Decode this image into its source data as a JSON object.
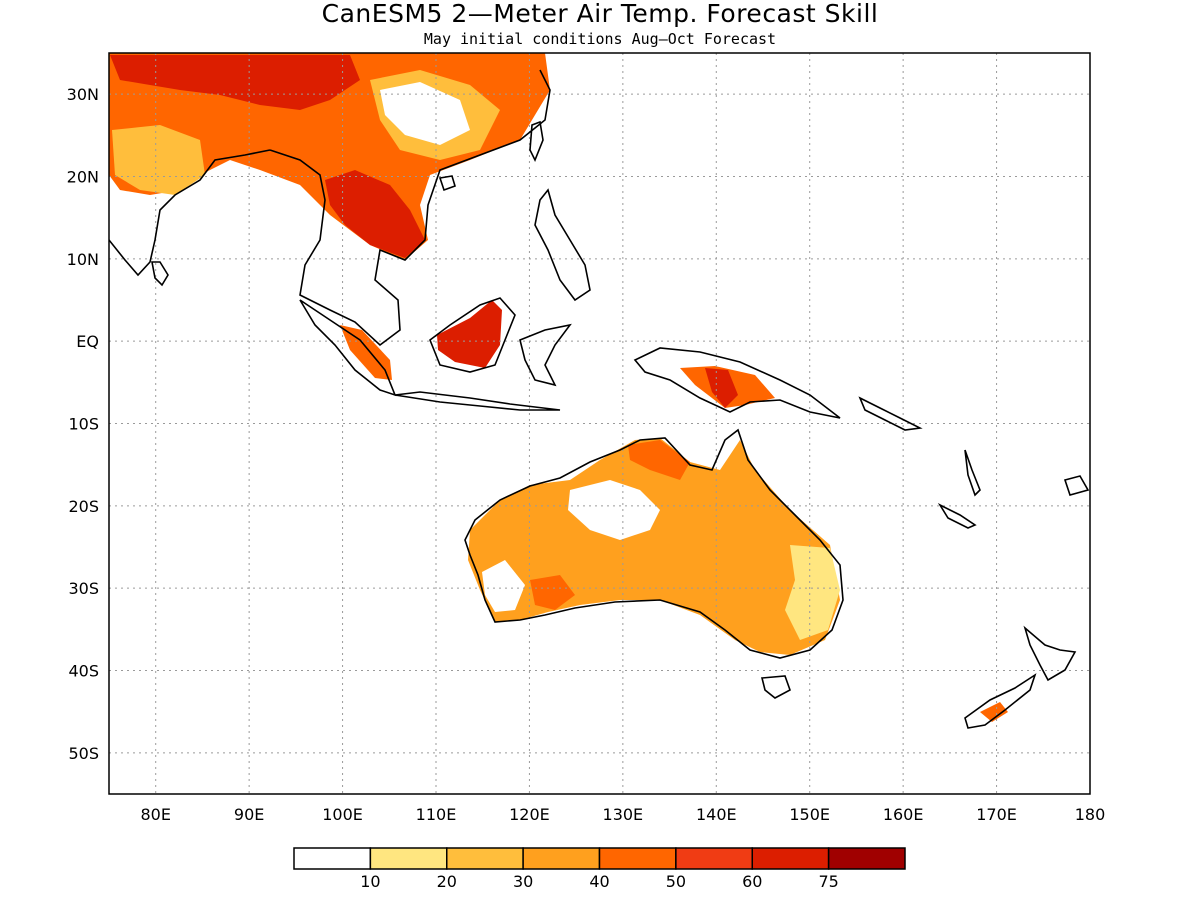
{
  "title": "CanESM5 2—Meter Air Temp. Forecast Skill",
  "subtitle": "May initial conditions  Aug—Oct Forecast",
  "map": {
    "lon_range": [
      75,
      180
    ],
    "lat_range": [
      -55,
      35
    ],
    "grid": true,
    "lon_ticks": [
      "80E",
      "90E",
      "100E",
      "110E",
      "120E",
      "130E",
      "140E",
      "150E",
      "160E",
      "170E",
      "180"
    ],
    "lat_ticks": [
      "30N",
      "20N",
      "10N",
      "EQ",
      "10S",
      "20S",
      "30S",
      "40S",
      "50S"
    ]
  },
  "colorbar": {
    "labels": [
      "10",
      "20",
      "30",
      "40",
      "50",
      "60",
      "75"
    ],
    "colors": [
      "#ffffff",
      "#ffe680",
      "#ffbe3c",
      "#ffa01e",
      "#ff6600",
      "#f03c14",
      "#dc1e00",
      "#a00000"
    ]
  }
}
